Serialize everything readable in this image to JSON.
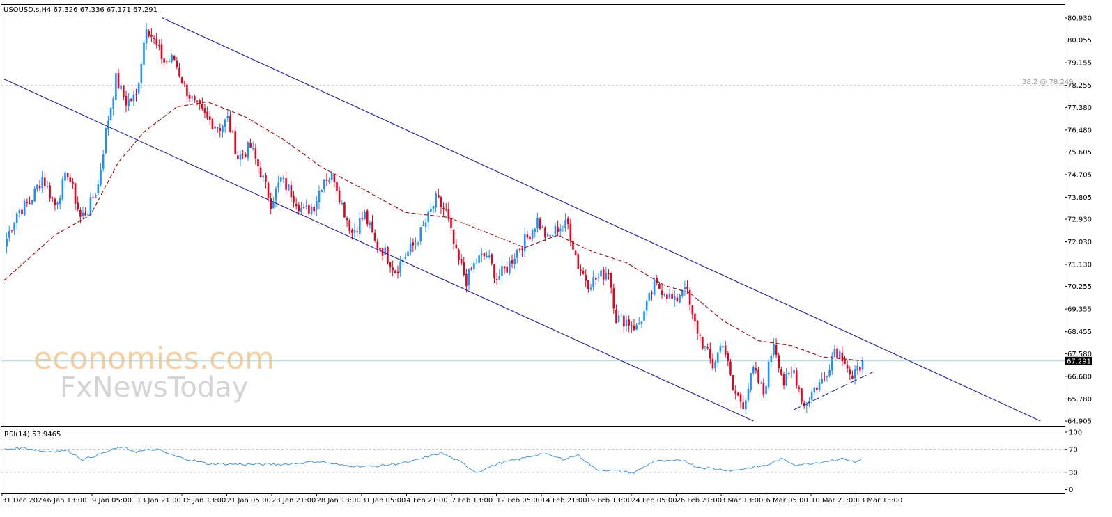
{
  "header": {
    "symbol_info": "USOUSD.s,H4  67.326 67.336 67.171 67.291"
  },
  "watermark": {
    "brand": "economies.com",
    "sub": "FxNewsToday"
  },
  "fib_label": "38.2 @ 78.249",
  "colors": {
    "bull": "#1e90ff",
    "bear": "#e8001c",
    "channel": "#1f1fa0",
    "ma": "#a01616",
    "rsi": "#3d94e8",
    "price_line": "#9fd9e3",
    "grid_dotted": "#b0b0b0"
  },
  "chart_data": [
    {
      "type": "candlestick",
      "symbol": "USOUSD.s",
      "timeframe": "H4",
      "ohlc_header": {
        "open": 67.326,
        "high": 67.336,
        "low": 67.171,
        "close": 67.291
      },
      "current_price": "67.291",
      "ylim": [
        64.905,
        81.3
      ],
      "y_ticks": [
        "80.930",
        "80.055",
        "79.155",
        "78.255",
        "77.380",
        "76.480",
        "75.605",
        "74.705",
        "73.805",
        "72.930",
        "72.030",
        "71.130",
        "70.255",
        "69.355",
        "68.455",
        "67.580",
        "66.680",
        "65.780",
        "64.905"
      ],
      "x_ticks": [
        "31 Dec 2024",
        "6 Jan 13:00",
        "9 Jan 05:00",
        "13 Jan 21:00",
        "16 Jan 13:00",
        "21 Jan 05:00",
        "23 Jan 21:00",
        "28 Jan 13:00",
        "31 Jan 05:00",
        "4 Feb 21:00",
        "7 Feb 13:00",
        "12 Feb 05:00",
        "14 Feb 21:00",
        "19 Feb 13:00",
        "24 Feb 05:00",
        "26 Feb 21:00",
        "3 Mar 13:00",
        "6 Mar 05:00",
        "10 Mar 21:00",
        "13 Mar 13:00"
      ],
      "close_path": [
        {
          "bar": 0,
          "close": 71.9
        },
        {
          "bar": 5,
          "close": 73.2
        },
        {
          "bar": 10,
          "close": 73.6
        },
        {
          "bar": 15,
          "close": 74.6
        },
        {
          "bar": 20,
          "close": 73.5
        },
        {
          "bar": 25,
          "close": 74.8
        },
        {
          "bar": 30,
          "close": 73.0
        },
        {
          "bar": 33,
          "close": 73.3
        },
        {
          "bar": 37,
          "close": 74.3
        },
        {
          "bar": 40,
          "close": 76.4
        },
        {
          "bar": 44,
          "close": 78.5
        },
        {
          "bar": 48,
          "close": 77.6
        },
        {
          "bar": 52,
          "close": 77.8
        },
        {
          "bar": 56,
          "close": 80.7
        },
        {
          "bar": 59,
          "close": 80.0
        },
        {
          "bar": 63,
          "close": 79.2
        },
        {
          "bar": 67,
          "close": 79.3
        },
        {
          "bar": 71,
          "close": 78.2
        },
        {
          "bar": 75,
          "close": 77.5
        },
        {
          "bar": 80,
          "close": 76.9
        },
        {
          "bar": 85,
          "close": 76.6
        },
        {
          "bar": 88,
          "close": 76.9
        },
        {
          "bar": 92,
          "close": 75.4
        },
        {
          "bar": 97,
          "close": 75.8
        },
        {
          "bar": 101,
          "close": 74.8
        },
        {
          "bar": 105,
          "close": 73.6
        },
        {
          "bar": 109,
          "close": 74.5
        },
        {
          "bar": 113,
          "close": 74.0
        },
        {
          "bar": 118,
          "close": 73.2
        },
        {
          "bar": 122,
          "close": 73.5
        },
        {
          "bar": 126,
          "close": 74.6
        },
        {
          "bar": 130,
          "close": 74.6
        },
        {
          "bar": 133,
          "close": 73.5
        },
        {
          "bar": 137,
          "close": 72.4
        },
        {
          "bar": 142,
          "close": 73.1
        },
        {
          "bar": 146,
          "close": 72.0
        },
        {
          "bar": 150,
          "close": 71.6
        },
        {
          "bar": 154,
          "close": 70.9
        },
        {
          "bar": 158,
          "close": 71.5
        },
        {
          "bar": 162,
          "close": 72.0
        },
        {
          "bar": 166,
          "close": 72.8
        },
        {
          "bar": 170,
          "close": 73.7
        },
        {
          "bar": 174,
          "close": 73.2
        },
        {
          "bar": 178,
          "close": 71.5
        },
        {
          "bar": 182,
          "close": 70.5
        },
        {
          "bar": 186,
          "close": 71.3
        },
        {
          "bar": 190,
          "close": 71.5
        },
        {
          "bar": 194,
          "close": 70.6
        },
        {
          "bar": 198,
          "close": 71.0
        },
        {
          "bar": 202,
          "close": 71.7
        },
        {
          "bar": 206,
          "close": 72.2
        },
        {
          "bar": 210,
          "close": 72.9
        },
        {
          "bar": 214,
          "close": 72.1
        },
        {
          "bar": 218,
          "close": 72.6
        },
        {
          "bar": 222,
          "close": 72.7
        },
        {
          "bar": 226,
          "close": 71.1
        },
        {
          "bar": 230,
          "close": 70.4
        },
        {
          "bar": 234,
          "close": 70.6
        },
        {
          "bar": 238,
          "close": 70.9
        },
        {
          "bar": 241,
          "close": 69.0
        },
        {
          "bar": 245,
          "close": 68.9
        },
        {
          "bar": 249,
          "close": 68.6
        },
        {
          "bar": 252,
          "close": 69.2
        },
        {
          "bar": 256,
          "close": 70.3
        },
        {
          "bar": 260,
          "close": 70.1
        },
        {
          "bar": 264,
          "close": 69.6
        },
        {
          "bar": 268,
          "close": 70.4
        },
        {
          "bar": 271,
          "close": 69.0
        },
        {
          "bar": 275,
          "close": 68.0
        },
        {
          "bar": 279,
          "close": 67.1
        },
        {
          "bar": 283,
          "close": 68.1
        },
        {
          "bar": 287,
          "close": 66.1
        },
        {
          "bar": 291,
          "close": 65.6
        },
        {
          "bar": 295,
          "close": 66.9
        },
        {
          "bar": 299,
          "close": 66.0
        },
        {
          "bar": 303,
          "close": 68.1
        },
        {
          "bar": 307,
          "close": 66.4
        },
        {
          "bar": 311,
          "close": 66.9
        },
        {
          "bar": 315,
          "close": 65.5
        },
        {
          "bar": 319,
          "close": 66.2
        },
        {
          "bar": 323,
          "close": 66.6
        },
        {
          "bar": 327,
          "close": 67.8
        },
        {
          "bar": 331,
          "close": 67.4
        },
        {
          "bar": 334,
          "close": 66.5
        },
        {
          "bar": 338,
          "close": 67.291
        }
      ],
      "moving_average": [
        {
          "bar": 0,
          "value": 70.5
        },
        {
          "bar": 20,
          "value": 72.3
        },
        {
          "bar": 34,
          "value": 73.1
        },
        {
          "bar": 45,
          "value": 75.2
        },
        {
          "bar": 55,
          "value": 76.4
        },
        {
          "bar": 68,
          "value": 77.4
        },
        {
          "bar": 80,
          "value": 77.6
        },
        {
          "bar": 95,
          "value": 77.0
        },
        {
          "bar": 110,
          "value": 76.1
        },
        {
          "bar": 125,
          "value": 75.0
        },
        {
          "bar": 140,
          "value": 74.2
        },
        {
          "bar": 158,
          "value": 73.2
        },
        {
          "bar": 175,
          "value": 73.0
        },
        {
          "bar": 190,
          "value": 72.4
        },
        {
          "bar": 205,
          "value": 71.8
        },
        {
          "bar": 218,
          "value": 72.3
        },
        {
          "bar": 230,
          "value": 71.7
        },
        {
          "bar": 245,
          "value": 71.2
        },
        {
          "bar": 260,
          "value": 70.3
        },
        {
          "bar": 270,
          "value": 70.0
        },
        {
          "bar": 283,
          "value": 68.9
        },
        {
          "bar": 297,
          "value": 68.1
        },
        {
          "bar": 310,
          "value": 67.9
        },
        {
          "bar": 322,
          "value": 67.45
        },
        {
          "bar": 338,
          "value": 67.3
        }
      ],
      "channel_upper": [
        {
          "bar": 62,
          "price": 80.95
        },
        {
          "bar": 408,
          "price": 64.905
        }
      ],
      "channel_lower": [
        {
          "bar": 0,
          "price": 78.5
        },
        {
          "bar": 295,
          "price": 64.905
        }
      ],
      "support_trendline": [
        {
          "bar": 311,
          "price": 65.35
        },
        {
          "bar": 342,
          "price": 66.85
        }
      ],
      "fib_level": {
        "label": "38.2 @ 78.249",
        "price": 78.249
      }
    },
    {
      "type": "line",
      "indicator": "RSI(14)",
      "title": "RSI(14) 53.9465",
      "last_value": 53.9465,
      "ylim": [
        0,
        100
      ],
      "y_ticks": [
        "100",
        "70",
        "30",
        "0"
      ],
      "levels": [
        70,
        30
      ],
      "values": [
        {
          "bar": 0,
          "value": 70
        },
        {
          "bar": 8,
          "value": 73
        },
        {
          "bar": 16,
          "value": 66
        },
        {
          "bar": 25,
          "value": 68
        },
        {
          "bar": 31,
          "value": 52
        },
        {
          "bar": 38,
          "value": 62
        },
        {
          "bar": 46,
          "value": 74
        },
        {
          "bar": 52,
          "value": 66
        },
        {
          "bar": 60,
          "value": 70
        },
        {
          "bar": 68,
          "value": 57
        },
        {
          "bar": 80,
          "value": 45
        },
        {
          "bar": 95,
          "value": 44
        },
        {
          "bar": 110,
          "value": 44
        },
        {
          "bar": 124,
          "value": 49
        },
        {
          "bar": 133,
          "value": 42
        },
        {
          "bar": 145,
          "value": 40
        },
        {
          "bar": 160,
          "value": 48
        },
        {
          "bar": 172,
          "value": 64
        },
        {
          "bar": 180,
          "value": 47
        },
        {
          "bar": 186,
          "value": 30
        },
        {
          "bar": 195,
          "value": 46
        },
        {
          "bar": 203,
          "value": 53
        },
        {
          "bar": 212,
          "value": 63
        },
        {
          "bar": 220,
          "value": 53
        },
        {
          "bar": 226,
          "value": 60
        },
        {
          "bar": 233,
          "value": 35
        },
        {
          "bar": 240,
          "value": 33
        },
        {
          "bar": 248,
          "value": 29
        },
        {
          "bar": 256,
          "value": 50
        },
        {
          "bar": 262,
          "value": 49
        },
        {
          "bar": 268,
          "value": 51
        },
        {
          "bar": 272,
          "value": 40
        },
        {
          "bar": 280,
          "value": 36
        },
        {
          "bar": 287,
          "value": 33
        },
        {
          "bar": 292,
          "value": 37
        },
        {
          "bar": 300,
          "value": 42
        },
        {
          "bar": 306,
          "value": 53
        },
        {
          "bar": 312,
          "value": 43
        },
        {
          "bar": 320,
          "value": 47
        },
        {
          "bar": 326,
          "value": 51
        },
        {
          "bar": 331,
          "value": 54
        },
        {
          "bar": 335,
          "value": 47
        },
        {
          "bar": 338,
          "value": 53.9465
        }
      ]
    }
  ]
}
